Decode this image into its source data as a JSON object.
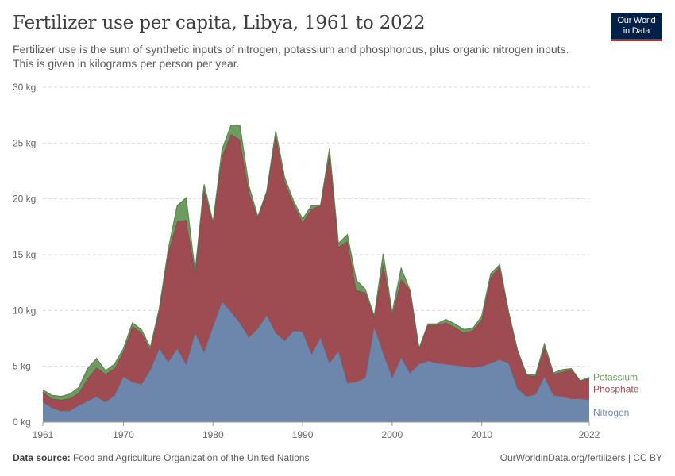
{
  "header": {
    "title": "Fertilizer use per capita, Libya, 1961 to 2022",
    "subtitle": "Fertilizer use is the sum of synthetic inputs of nitrogen, potassium and phosphorous, plus organic nitrogen inputs. This is given in kilograms per person per year."
  },
  "logo": {
    "line1": "Our World",
    "line2": "in Data",
    "bg_color": "#002147",
    "accent_color": "#ce261e"
  },
  "footer": {
    "source_label": "Data source:",
    "source_text": "Food and Agriculture Organization of the United Nations",
    "url_text": "OurWorldinData.org/fertilizers | CC BY"
  },
  "chart_data": {
    "type": "area",
    "stacked": true,
    "x": [
      1961,
      1962,
      1963,
      1964,
      1965,
      1966,
      1967,
      1968,
      1969,
      1970,
      1971,
      1972,
      1973,
      1974,
      1975,
      1976,
      1977,
      1978,
      1979,
      1980,
      1981,
      1982,
      1983,
      1984,
      1985,
      1986,
      1987,
      1988,
      1989,
      1990,
      1991,
      1992,
      1993,
      1994,
      1995,
      1996,
      1997,
      1998,
      1999,
      2000,
      2001,
      2002,
      2003,
      2004,
      2005,
      2006,
      2007,
      2008,
      2009,
      2010,
      2011,
      2012,
      2013,
      2014,
      2015,
      2016,
      2017,
      2018,
      2019,
      2020,
      2021,
      2022
    ],
    "series": [
      {
        "name": "Nitrogen",
        "color": "#6d87ac",
        "values": [
          1.8,
          1.3,
          1.0,
          1.0,
          1.5,
          1.9,
          2.3,
          1.8,
          2.4,
          4.1,
          3.6,
          3.4,
          4.7,
          6.6,
          5.4,
          6.6,
          5.2,
          8.0,
          6.3,
          8.6,
          10.8,
          9.9,
          8.9,
          7.6,
          8.4,
          9.6,
          8.0,
          7.3,
          8.2,
          8.1,
          6.1,
          7.6,
          5.3,
          6.4,
          3.5,
          3.6,
          4.0,
          8.6,
          6.2,
          4.0,
          5.8,
          4.4,
          5.2,
          5.5,
          5.3,
          5.2,
          5.1,
          5.0,
          4.9,
          5.0,
          5.3,
          5.6,
          5.3,
          3.0,
          2.3,
          2.5,
          4.1,
          2.4,
          2.3,
          2.1,
          2.1,
          2.0
        ]
      },
      {
        "name": "Phosphate",
        "color": "#9e4b52",
        "values": [
          0.9,
          0.8,
          1.0,
          1.1,
          1.1,
          2.0,
          2.6,
          2.5,
          2.4,
          2.2,
          5.0,
          4.6,
          1.8,
          3.4,
          9.8,
          11.4,
          12.9,
          5.4,
          14.5,
          9.2,
          13.0,
          15.9,
          16.4,
          13.0,
          9.9,
          11.0,
          17.7,
          14.2,
          11.3,
          9.8,
          13.0,
          11.8,
          18.7,
          9.3,
          12.7,
          8.2,
          7.6,
          0.8,
          8.0,
          5.6,
          7.0,
          7.4,
          1.4,
          3.2,
          3.4,
          3.7,
          3.4,
          3.0,
          3.3,
          4.2,
          7.7,
          8.3,
          4.4,
          3.4,
          1.9,
          1.6,
          2.6,
          1.9,
          2.2,
          2.6,
          1.6,
          1.9
        ]
      },
      {
        "name": "Potassium",
        "color": "#6c9d5e",
        "values": [
          0.2,
          0.3,
          0.3,
          0.4,
          0.5,
          0.9,
          0.8,
          0.3,
          0.4,
          0.3,
          0.3,
          0.3,
          0.2,
          0.2,
          0.3,
          1.4,
          2.0,
          0.1,
          0.5,
          0.1,
          0.6,
          0.8,
          1.3,
          0.6,
          0.1,
          0.1,
          0.4,
          0.4,
          0.3,
          0.3,
          0.3,
          0.0,
          0.5,
          0.3,
          0.6,
          0.9,
          0.3,
          0.1,
          0.9,
          0.2,
          1.0,
          0.0,
          0.0,
          0.1,
          0.1,
          0.3,
          0.3,
          0.3,
          0.2,
          0.3,
          0.3,
          0.2,
          0.2,
          0.0,
          0.1,
          0.1,
          0.3,
          0.1,
          0.2,
          0.1,
          0.0,
          0.1
        ]
      }
    ],
    "y_ticks": [
      "0 kg",
      "5 kg",
      "10 kg",
      "15 kg",
      "20 kg",
      "25 kg",
      "30 kg"
    ],
    "x_ticks": [
      "1961",
      "1970",
      "1980",
      "1990",
      "2000",
      "2010",
      "2022"
    ],
    "ylim": [
      0,
      30
    ],
    "xlim": [
      1961,
      2022
    ],
    "grid": true,
    "legend_placement": "right-inline",
    "axis_color": "#666666",
    "grid_color": "#dddddd"
  }
}
